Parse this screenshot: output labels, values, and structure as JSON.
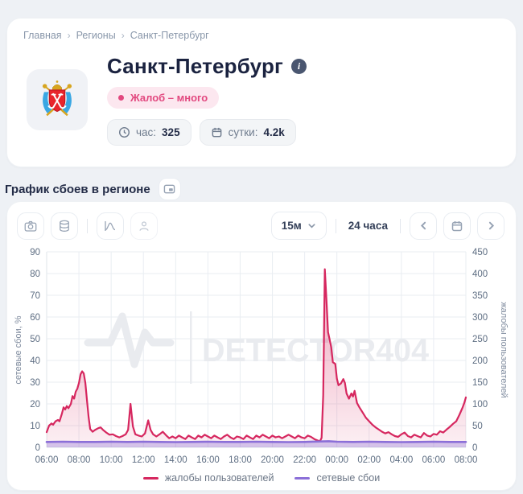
{
  "breadcrumb": {
    "separator": "›",
    "items": [
      "Главная",
      "Регионы",
      "Санкт-Петербург"
    ]
  },
  "header": {
    "title": "Санкт-Петербург",
    "info_icon": "i",
    "status_badge": "Жалоб – много",
    "stats": [
      {
        "icon": "clock-icon",
        "label": "час:",
        "value": "325"
      },
      {
        "icon": "calendar-icon",
        "label": "сутки:",
        "value": "4.2k"
      }
    ]
  },
  "section": {
    "title": "График сбоев в регионе"
  },
  "chart_toolbar": {
    "interval": "15м",
    "range_label": "24 часа"
  },
  "watermark": {
    "text": "DETECTOR404"
  },
  "colors": {
    "complaints": "#d6275f",
    "network": "#8b6fd8",
    "badge": "#e2487f",
    "grid": "#e9edf2",
    "axis_line": "#dfe4ea",
    "tick_text": "#5d6d82",
    "axis_title": "#7f8b9e",
    "watermark": "#e9ebef"
  },
  "chart_data": {
    "type": "area",
    "title": "График сбоев в регионе",
    "x_ticks": [
      "06:00",
      "08:00",
      "10:00",
      "12:00",
      "14:00",
      "16:00",
      "18:00",
      "20:00",
      "22:00",
      "00:00",
      "02:00",
      "04:00",
      "06:00",
      "08:00"
    ],
    "x_range_hours": [
      0,
      26
    ],
    "grid": true,
    "legend_position": "bottom",
    "y_left": {
      "label": "сетевые сбои, %",
      "min": 0,
      "max": 90,
      "step": 10
    },
    "y_right": {
      "label": "жалобы пользователей",
      "min": 0,
      "max": 450,
      "step": 50
    },
    "series": [
      {
        "name": "жалобы пользователей",
        "axis": "right",
        "color": "#d6275f",
        "fill": "gradient",
        "points": [
          [
            0,
            35
          ],
          [
            0.15,
            50
          ],
          [
            0.3,
            55
          ],
          [
            0.4,
            52
          ],
          [
            0.55,
            60
          ],
          [
            0.7,
            63
          ],
          [
            0.8,
            60
          ],
          [
            0.95,
            78
          ],
          [
            1.05,
            92
          ],
          [
            1.15,
            87
          ],
          [
            1.25,
            95
          ],
          [
            1.35,
            90
          ],
          [
            1.5,
            100
          ],
          [
            1.6,
            118
          ],
          [
            1.7,
            112
          ],
          [
            1.8,
            128
          ],
          [
            1.9,
            135
          ],
          [
            2.0,
            148
          ],
          [
            2.1,
            168
          ],
          [
            2.2,
            175
          ],
          [
            2.3,
            170
          ],
          [
            2.4,
            148
          ],
          [
            2.5,
            108
          ],
          [
            2.6,
            70
          ],
          [
            2.7,
            42
          ],
          [
            2.85,
            36
          ],
          [
            3.0,
            40
          ],
          [
            3.2,
            44
          ],
          [
            3.35,
            46
          ],
          [
            3.5,
            40
          ],
          [
            3.7,
            34
          ],
          [
            3.9,
            29
          ],
          [
            4.1,
            30
          ],
          [
            4.3,
            26
          ],
          [
            4.5,
            23
          ],
          [
            4.7,
            26
          ],
          [
            4.9,
            30
          ],
          [
            5.05,
            40
          ],
          [
            5.2,
            100
          ],
          [
            5.35,
            48
          ],
          [
            5.5,
            30
          ],
          [
            5.7,
            27
          ],
          [
            5.9,
            25
          ],
          [
            6.1,
            32
          ],
          [
            6.3,
            62
          ],
          [
            6.45,
            40
          ],
          [
            6.6,
            30
          ],
          [
            6.8,
            25
          ],
          [
            7.0,
            30
          ],
          [
            7.2,
            36
          ],
          [
            7.4,
            28
          ],
          [
            7.6,
            21
          ],
          [
            7.8,
            25
          ],
          [
            8.0,
            21
          ],
          [
            8.2,
            27
          ],
          [
            8.4,
            23
          ],
          [
            8.6,
            19
          ],
          [
            8.8,
            27
          ],
          [
            9.0,
            23
          ],
          [
            9.2,
            19
          ],
          [
            9.4,
            27
          ],
          [
            9.6,
            23
          ],
          [
            9.8,
            29
          ],
          [
            10.0,
            25
          ],
          [
            10.2,
            21
          ],
          [
            10.4,
            27
          ],
          [
            10.6,
            23
          ],
          [
            10.8,
            19
          ],
          [
            11.0,
            25
          ],
          [
            11.2,
            29
          ],
          [
            11.4,
            23
          ],
          [
            11.6,
            19
          ],
          [
            11.8,
            25
          ],
          [
            12.0,
            23
          ],
          [
            12.2,
            19
          ],
          [
            12.4,
            27
          ],
          [
            12.6,
            23
          ],
          [
            12.8,
            19
          ],
          [
            13.0,
            27
          ],
          [
            13.2,
            23
          ],
          [
            13.4,
            29
          ],
          [
            13.6,
            25
          ],
          [
            13.8,
            21
          ],
          [
            14.0,
            27
          ],
          [
            14.2,
            23
          ],
          [
            14.4,
            25
          ],
          [
            14.6,
            21
          ],
          [
            14.8,
            25
          ],
          [
            15.0,
            29
          ],
          [
            15.2,
            25
          ],
          [
            15.4,
            21
          ],
          [
            15.6,
            27
          ],
          [
            15.8,
            23
          ],
          [
            16.0,
            21
          ],
          [
            16.2,
            27
          ],
          [
            16.4,
            24
          ],
          [
            16.6,
            19
          ],
          [
            16.8,
            16
          ],
          [
            16.95,
            14
          ],
          [
            17.05,
            22
          ],
          [
            17.15,
            120
          ],
          [
            17.25,
            410
          ],
          [
            17.35,
            340
          ],
          [
            17.45,
            265
          ],
          [
            17.55,
            248
          ],
          [
            17.65,
            230
          ],
          [
            17.75,
            196
          ],
          [
            17.9,
            192
          ],
          [
            18.0,
            158
          ],
          [
            18.1,
            143
          ],
          [
            18.25,
            147
          ],
          [
            18.4,
            157
          ],
          [
            18.5,
            148
          ],
          [
            18.6,
            124
          ],
          [
            18.75,
            112
          ],
          [
            18.9,
            124
          ],
          [
            19.0,
            117
          ],
          [
            19.1,
            130
          ],
          [
            19.25,
            102
          ],
          [
            19.4,
            92
          ],
          [
            19.6,
            80
          ],
          [
            19.8,
            68
          ],
          [
            20.0,
            60
          ],
          [
            20.2,
            52
          ],
          [
            20.4,
            46
          ],
          [
            20.6,
            41
          ],
          [
            20.8,
            36
          ],
          [
            21.0,
            32
          ],
          [
            21.2,
            35
          ],
          [
            21.4,
            30
          ],
          [
            21.6,
            26
          ],
          [
            21.8,
            24
          ],
          [
            22.0,
            30
          ],
          [
            22.2,
            34
          ],
          [
            22.4,
            26
          ],
          [
            22.6,
            23
          ],
          [
            22.8,
            29
          ],
          [
            23.0,
            26
          ],
          [
            23.2,
            23
          ],
          [
            23.4,
            33
          ],
          [
            23.6,
            27
          ],
          [
            23.8,
            25
          ],
          [
            24.0,
            31
          ],
          [
            24.2,
            29
          ],
          [
            24.4,
            37
          ],
          [
            24.6,
            34
          ],
          [
            24.8,
            41
          ],
          [
            25.0,
            47
          ],
          [
            25.2,
            54
          ],
          [
            25.4,
            60
          ],
          [
            25.6,
            75
          ],
          [
            25.8,
            92
          ],
          [
            25.9,
            102
          ],
          [
            26.0,
            115
          ]
        ]
      },
      {
        "name": "сетевые сбои",
        "axis": "left",
        "color": "#8b6fd8",
        "fill": "flat",
        "points": [
          [
            0,
            2.5
          ],
          [
            1,
            2.6
          ],
          [
            2,
            2.5
          ],
          [
            3,
            2.5
          ],
          [
            4,
            2.6
          ],
          [
            5,
            2.5
          ],
          [
            6,
            2.6
          ],
          [
            7,
            2.5
          ],
          [
            8,
            2.4
          ],
          [
            9,
            2.5
          ],
          [
            10,
            2.6
          ],
          [
            11,
            2.5
          ],
          [
            12,
            2.5
          ],
          [
            13,
            2.6
          ],
          [
            14,
            2.5
          ],
          [
            15,
            2.4
          ],
          [
            16,
            2.5
          ],
          [
            17,
            2.7
          ],
          [
            17.5,
            2.8
          ],
          [
            18,
            2.6
          ],
          [
            19,
            2.5
          ],
          [
            20,
            2.6
          ],
          [
            21,
            2.5
          ],
          [
            22,
            2.4
          ],
          [
            23,
            2.5
          ],
          [
            24,
            2.6
          ],
          [
            25,
            2.5
          ],
          [
            26,
            2.5
          ]
        ]
      }
    ]
  }
}
